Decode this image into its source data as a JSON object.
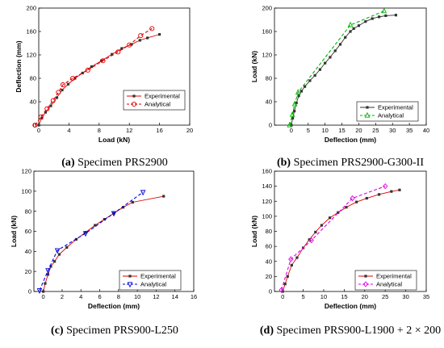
{
  "colors": {
    "experimental": "#e00000",
    "experimental_marker": "#333333",
    "analytical_red": "#e00000",
    "analytical_green": "#00b400",
    "analytical_blue": "#0000dd",
    "analytical_magenta": "#e000e0"
  },
  "chart_data": [
    {
      "type": "line",
      "caption": {
        "letter": "(a)",
        "text": "Specimen PRS2900"
      },
      "xlabel": "Load (kN)",
      "ylabel": "Deflection (mm)",
      "xlim": [
        0,
        20
      ],
      "ylim": [
        0,
        200
      ],
      "xticks": [
        0,
        4,
        8,
        12,
        16,
        20
      ],
      "yticks": [
        0,
        40,
        80,
        120,
        160,
        200
      ],
      "grid": false,
      "legend": "right",
      "series": [
        {
          "name": "Experimental",
          "marker": "square",
          "dash": false,
          "points": [
            [
              0,
              0
            ],
            [
              0.4,
              12
            ],
            [
              0.9,
              22
            ],
            [
              1.6,
              33
            ],
            [
              2.4,
              47
            ],
            [
              3.1,
              60
            ],
            [
              3.9,
              70
            ],
            [
              4.8,
              80
            ],
            [
              5.8,
              89
            ],
            [
              7.0,
              100
            ],
            [
              8.3,
              110
            ],
            [
              9.7,
              121
            ],
            [
              11.0,
              131
            ],
            [
              12.3,
              138
            ],
            [
              13.4,
              145
            ],
            [
              14.4,
              149
            ],
            [
              16.0,
              155
            ]
          ]
        },
        {
          "name": "Analytical",
          "marker": "circle",
          "dash": true,
          "points": [
            [
              -0.5,
              0
            ],
            [
              0.3,
              14
            ],
            [
              1.1,
              28
            ],
            [
              1.9,
              42
            ],
            [
              2.6,
              56
            ],
            [
              3.2,
              69
            ],
            [
              4.5,
              80
            ],
            [
              6.5,
              94
            ],
            [
              8.5,
              110
            ],
            [
              10.5,
              125
            ],
            [
              12.0,
              137
            ],
            [
              13.5,
              153
            ],
            [
              15.0,
              165
            ]
          ]
        }
      ]
    },
    {
      "type": "line",
      "caption": {
        "letter": "(b)",
        "text": "Specimen PRS2900-G300-II"
      },
      "xlabel": "Deflection (mm)",
      "ylabel": "Load (kN)",
      "xlim": [
        -5,
        40
      ],
      "ylim": [
        0,
        200
      ],
      "xticks": [
        0,
        5,
        10,
        15,
        20,
        25,
        30,
        35,
        40
      ],
      "yticks": [
        0,
        40,
        80,
        120,
        160,
        200
      ],
      "grid": false,
      "legend": "bottom-right",
      "series": [
        {
          "name": "Experimental",
          "marker": "square",
          "dash": false,
          "points": [
            [
              0,
              0
            ],
            [
              0.4,
              12
            ],
            [
              0.9,
              24
            ],
            [
              1.5,
              38
            ],
            [
              2.2,
              50
            ],
            [
              3.0,
              58
            ],
            [
              4.0,
              66
            ],
            [
              5.5,
              76
            ],
            [
              7.0,
              85
            ],
            [
              8.5,
              95
            ],
            [
              10.0,
              106
            ],
            [
              11.5,
              116
            ],
            [
              13.0,
              127
            ],
            [
              14.5,
              138
            ],
            [
              16.0,
              150
            ],
            [
              17.5,
              160
            ],
            [
              18.5,
              165
            ],
            [
              20.0,
              170
            ],
            [
              22.0,
              177
            ],
            [
              24.0,
              182
            ],
            [
              26.0,
              185
            ],
            [
              28.0,
              187
            ],
            [
              31.0,
              188
            ]
          ]
        },
        {
          "name": "Analytical",
          "marker": "triangle",
          "dash": true,
          "points": [
            [
              -0.5,
              0
            ],
            [
              0.3,
              18
            ],
            [
              1.0,
              36
            ],
            [
              2.0,
              56
            ],
            [
              17.5,
              171
            ],
            [
              27.5,
              195
            ]
          ]
        }
      ]
    },
    {
      "type": "line",
      "caption": {
        "letter": "(c)",
        "text": "Specimen PRS900-L250"
      },
      "xlabel": "Deflection (mm)",
      "ylabel": "Load (kN)",
      "xlim": [
        -1,
        16
      ],
      "ylim": [
        0,
        120
      ],
      "xticks": [
        0,
        2,
        4,
        6,
        8,
        10,
        12,
        14,
        16
      ],
      "yticks": [
        0,
        20,
        40,
        60,
        80,
        100,
        120
      ],
      "grid": false,
      "legend": "bottom-right",
      "series": [
        {
          "name": "Experimental",
          "marker": "square",
          "dash": false,
          "points": [
            [
              0,
              0
            ],
            [
              0.2,
              8
            ],
            [
              0.5,
              17
            ],
            [
              0.8,
              25
            ],
            [
              1.2,
              30
            ],
            [
              1.7,
              37
            ],
            [
              2.5,
              44
            ],
            [
              3.5,
              52
            ],
            [
              4.5,
              59
            ],
            [
              5.5,
              66
            ],
            [
              6.5,
              72
            ],
            [
              7.5,
              78
            ],
            [
              8.5,
              84
            ],
            [
              9.5,
              89
            ],
            [
              12.8,
              95
            ]
          ]
        },
        {
          "name": "Analytical",
          "marker": "triangle-down",
          "dash": true,
          "points": [
            [
              -0.4,
              1
            ],
            [
              0.5,
              21
            ],
            [
              1.5,
              41
            ],
            [
              4.5,
              58
            ],
            [
              7.5,
              78
            ],
            [
              10.6,
              99
            ]
          ]
        }
      ]
    },
    {
      "type": "line",
      "caption": {
        "letter": "(d)",
        "text": "Specimen PRS900-L1900 + 2 × 200"
      },
      "xlabel": "Deflection (mm)",
      "ylabel": "Load (kN)",
      "xlim": [
        -2,
        35
      ],
      "ylim": [
        0,
        160
      ],
      "xticks": [
        0,
        5,
        10,
        15,
        20,
        25,
        30,
        35
      ],
      "yticks": [
        0,
        20,
        40,
        60,
        80,
        100,
        120,
        140,
        160
      ],
      "grid": false,
      "legend": "bottom-right",
      "series": [
        {
          "name": "Experimental",
          "marker": "square",
          "dash": false,
          "points": [
            [
              0,
              0
            ],
            [
              0.6,
              10
            ],
            [
              1.2,
              20
            ],
            [
              2.2,
              35
            ],
            [
              3.5,
              45
            ],
            [
              5.0,
              58
            ],
            [
              6.5,
              69
            ],
            [
              8.0,
              79
            ],
            [
              9.5,
              88
            ],
            [
              11.5,
              98
            ],
            [
              13.5,
              105
            ],
            [
              15.5,
              112
            ],
            [
              18.0,
              119
            ],
            [
              20.5,
              124
            ],
            [
              23.5,
              129
            ],
            [
              26.5,
              133
            ],
            [
              28.5,
              135
            ]
          ]
        },
        {
          "name": "Analytical",
          "marker": "diamond",
          "dash": true,
          "points": [
            [
              -0.3,
              2
            ],
            [
              2.0,
              43
            ],
            [
              7.0,
              68
            ],
            [
              17.0,
              124
            ],
            [
              25.0,
              140
            ]
          ]
        }
      ]
    }
  ]
}
